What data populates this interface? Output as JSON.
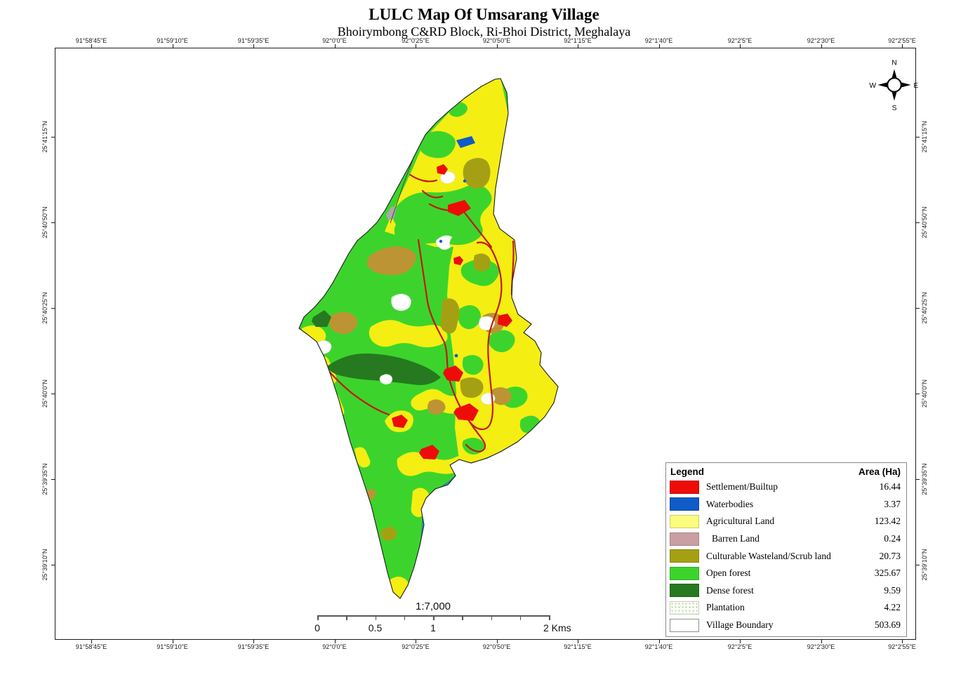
{
  "title": "LULC Map Of Umsarang Village",
  "subtitle": "Bhoirymbong C&RD Block, Ri-Bhoi District, Meghalaya",
  "axes": {
    "lon_labels": [
      "91°58'45\"E",
      "91°59'10\"E",
      "91°59'35\"E",
      "92°0'0\"E",
      "92°0'25\"E",
      "92°0'50\"E",
      "92°1'15\"E",
      "92°1'40\"E",
      "92°2'5\"E",
      "92°2'30\"E",
      "92°2'55\"E"
    ],
    "lat_labels": [
      "25°41'15\"N",
      "25°40'50\"N",
      "25°40'25\"N",
      "25°40'0\"N",
      "25°39'35\"N",
      "25°39'10\"N"
    ]
  },
  "compass": {
    "north": "N",
    "south": "S",
    "east": "E",
    "west": "W"
  },
  "scale_bar": {
    "ratio": "1:7,000",
    "labels": [
      "0",
      "0.5",
      "1",
      "2 Kms"
    ]
  },
  "legend": {
    "title": "Legend",
    "area_header": "Area (Ha)",
    "items": [
      {
        "key": "settlement",
        "label": "Settlement/Builtup",
        "area": "16.44",
        "color": "#ee0c09"
      },
      {
        "key": "waterbodies",
        "label": "Waterbodies",
        "area": "3.37",
        "color": "#0f5bc8"
      },
      {
        "key": "agricultural",
        "label": "Agricultural Land",
        "area": "123.42",
        "color": "#fbfc7e"
      },
      {
        "key": "barren",
        "label": "Barren Land",
        "area": "0.24",
        "color": "#c99fa3"
      },
      {
        "key": "wasteland",
        "label": "Culturable Wasteland/Scrub land",
        "area": "20.73",
        "color": "#a5a013"
      },
      {
        "key": "open_forest",
        "label": "Open forest",
        "area": "325.67",
        "color": "#3cd42c"
      },
      {
        "key": "dense_forest",
        "label": "Dense forest",
        "area": "9.59",
        "color": "#26791f"
      },
      {
        "key": "plantation",
        "label": "Plantation",
        "area": "4.22",
        "color": "#ffffff"
      },
      {
        "key": "boundary",
        "label": "Village Boundary",
        "area": "503.69",
        "color": "#ffffff"
      }
    ]
  },
  "colors": {
    "agricultural_map": "#f4ee13",
    "open_forest": "#3cd42c",
    "dense_forest": "#26791f",
    "settlement": "#ee0c09",
    "settlement_road": "#c41a08",
    "waterbodies": "#0f5bc8",
    "wasteland_olive": "#a5a013",
    "wasteland_tan": "#bd9434",
    "plantation": "#ffffff",
    "gray_patch": "#a8a8a8",
    "stream_blue": "#2277cc",
    "boundary_line": "#1c1c1c"
  }
}
